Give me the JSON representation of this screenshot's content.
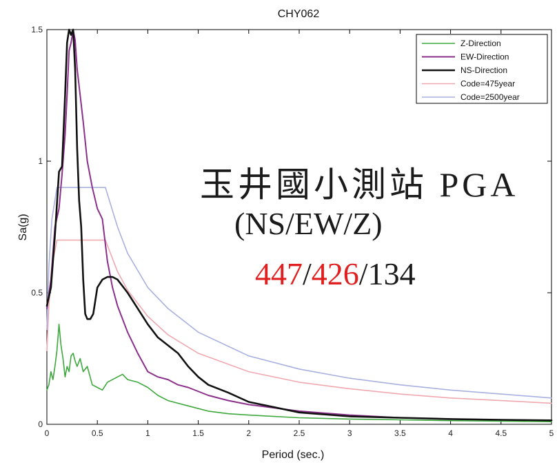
{
  "chart_data": {
    "type": "line",
    "title": "CHY062",
    "xlabel": "Period (sec.)",
    "ylabel": "Sa(g)",
    "xlim": [
      0,
      5
    ],
    "ylim": [
      0,
      1.5
    ],
    "xticks": [
      0,
      0.5,
      1,
      1.5,
      2,
      2.5,
      3,
      3.5,
      4,
      4.5,
      5
    ],
    "xtick_labels": [
      "0",
      "0.5",
      "1",
      "1.5",
      "2",
      "2.5",
      "3",
      "3.5",
      "4",
      "4.5",
      "5"
    ],
    "yticks": [
      0,
      0.5,
      1,
      1.5
    ],
    "ytick_labels": [
      "0",
      "0.5",
      "1",
      "1.5"
    ],
    "grid": false,
    "legend_position": "top-right",
    "series": [
      {
        "name": "Z-Direction",
        "color": "#3ca83c",
        "x": [
          0,
          0.02,
          0.04,
          0.06,
          0.08,
          0.1,
          0.12,
          0.14,
          0.16,
          0.18,
          0.2,
          0.22,
          0.24,
          0.26,
          0.28,
          0.3,
          0.33,
          0.36,
          0.4,
          0.45,
          0.5,
          0.55,
          0.6,
          0.65,
          0.7,
          0.75,
          0.8,
          0.9,
          1.0,
          1.1,
          1.2,
          1.4,
          1.6,
          1.8,
          2.0,
          2.5,
          3.0,
          3.5,
          4.0,
          4.5,
          5.0
        ],
        "y": [
          0.13,
          0.15,
          0.2,
          0.17,
          0.22,
          0.28,
          0.38,
          0.3,
          0.25,
          0.18,
          0.22,
          0.2,
          0.26,
          0.27,
          0.24,
          0.22,
          0.25,
          0.2,
          0.22,
          0.15,
          0.14,
          0.13,
          0.16,
          0.17,
          0.18,
          0.19,
          0.17,
          0.16,
          0.14,
          0.11,
          0.09,
          0.07,
          0.05,
          0.04,
          0.035,
          0.025,
          0.02,
          0.017,
          0.014,
          0.012,
          0.01
        ]
      },
      {
        "name": "EW-Direction",
        "color": "#8b2f8b",
        "x": [
          0,
          0.04,
          0.08,
          0.12,
          0.15,
          0.18,
          0.2,
          0.22,
          0.24,
          0.26,
          0.28,
          0.3,
          0.33,
          0.36,
          0.4,
          0.45,
          0.5,
          0.55,
          0.6,
          0.65,
          0.7,
          0.8,
          0.9,
          1.0,
          1.1,
          1.2,
          1.3,
          1.4,
          1.6,
          1.8,
          2.0,
          2.5,
          3.0,
          3.5,
          4.0,
          4.5,
          5.0
        ],
        "y": [
          0.44,
          0.55,
          0.75,
          0.82,
          0.95,
          1.1,
          1.25,
          1.42,
          1.45,
          1.5,
          1.46,
          1.35,
          1.25,
          1.15,
          1.0,
          0.9,
          0.82,
          0.78,
          0.62,
          0.52,
          0.45,
          0.35,
          0.27,
          0.2,
          0.18,
          0.17,
          0.15,
          0.14,
          0.11,
          0.09,
          0.075,
          0.05,
          0.035,
          0.025,
          0.02,
          0.017,
          0.015
        ]
      },
      {
        "name": "NS-Direction",
        "color": "#111111",
        "x": [
          0,
          0.04,
          0.08,
          0.12,
          0.15,
          0.18,
          0.2,
          0.22,
          0.24,
          0.26,
          0.28,
          0.3,
          0.32,
          0.34,
          0.36,
          0.38,
          0.4,
          0.43,
          0.46,
          0.5,
          0.55,
          0.6,
          0.65,
          0.7,
          0.8,
          0.9,
          1.0,
          1.1,
          1.2,
          1.3,
          1.4,
          1.5,
          1.6,
          1.8,
          2.0,
          2.5,
          3.0,
          3.5,
          4.0,
          4.5,
          5.0
        ],
        "y": [
          0.45,
          0.52,
          0.72,
          0.96,
          0.98,
          1.25,
          1.45,
          1.5,
          1.48,
          1.5,
          1.35,
          1.05,
          0.85,
          0.75,
          0.55,
          0.42,
          0.4,
          0.4,
          0.42,
          0.52,
          0.55,
          0.56,
          0.56,
          0.55,
          0.5,
          0.44,
          0.38,
          0.33,
          0.3,
          0.27,
          0.22,
          0.18,
          0.15,
          0.12,
          0.085,
          0.045,
          0.03,
          0.025,
          0.02,
          0.017,
          0.015
        ]
      },
      {
        "name": "Code=475year",
        "color": "#f0a8b0",
        "x": [
          0,
          0.02,
          0.05,
          0.1,
          0.15,
          0.2,
          0.3,
          0.4,
          0.5,
          0.58,
          0.7,
          0.8,
          1.0,
          1.2,
          1.5,
          2.0,
          2.5,
          3.0,
          3.5,
          4.0,
          4.5,
          5.0
        ],
        "y": [
          0.28,
          0.45,
          0.6,
          0.7,
          0.7,
          0.7,
          0.7,
          0.7,
          0.7,
          0.7,
          0.58,
          0.51,
          0.41,
          0.34,
          0.27,
          0.2,
          0.16,
          0.135,
          0.115,
          0.1,
          0.09,
          0.08
        ]
      },
      {
        "name": "Code=2500year",
        "color": "#a8b0e0",
        "x": [
          0,
          0.02,
          0.05,
          0.1,
          0.15,
          0.2,
          0.3,
          0.4,
          0.5,
          0.58,
          0.7,
          0.8,
          1.0,
          1.2,
          1.5,
          2.0,
          2.5,
          3.0,
          3.5,
          4.0,
          4.5,
          5.0
        ],
        "y": [
          0.36,
          0.6,
          0.78,
          0.9,
          0.9,
          0.9,
          0.9,
          0.9,
          0.9,
          0.9,
          0.75,
          0.65,
          0.52,
          0.44,
          0.35,
          0.26,
          0.21,
          0.175,
          0.15,
          0.13,
          0.115,
          0.1
        ]
      }
    ],
    "annotation": {
      "line1": "玉井國小測站 PGA",
      "line2": "(NS/EW/Z)",
      "ns": "447",
      "ew": "426",
      "z": "134",
      "sep": "/",
      "red_color": "#e02020",
      "black_color": "#1a1a1a"
    }
  }
}
